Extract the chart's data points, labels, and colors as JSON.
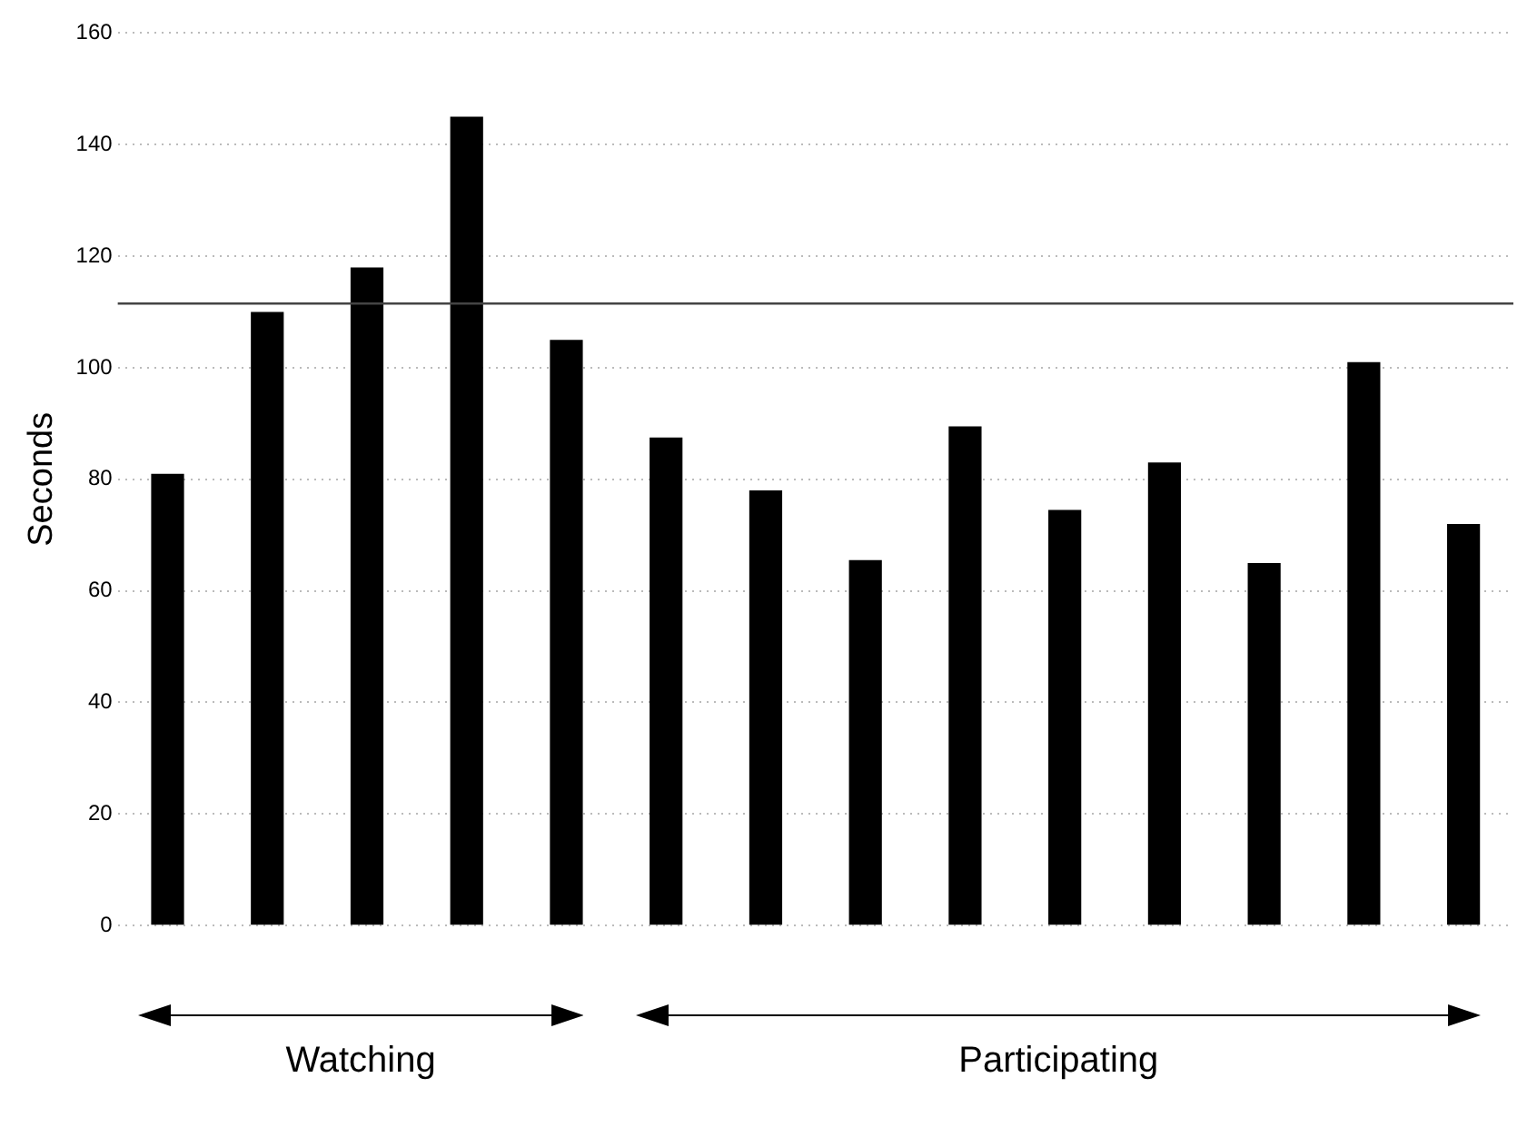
{
  "chart_data": {
    "type": "bar",
    "ylabel": "Seconds",
    "categories": [
      null,
      null,
      null,
      null,
      null,
      null,
      null,
      null,
      null,
      null,
      null,
      null,
      null,
      null
    ],
    "values": [
      81,
      110,
      118,
      145,
      105,
      87.5,
      78,
      65.5,
      89.5,
      74.5,
      83,
      65,
      101,
      72
    ],
    "color": "#000000",
    "ylim": [
      0,
      160
    ],
    "yticks": [
      0,
      20,
      40,
      60,
      80,
      100,
      120,
      140,
      160
    ],
    "grid": "y",
    "ref_lines": [
      {
        "axis": "y",
        "value": 111.5,
        "color": "#444444"
      }
    ],
    "annotations": [
      "Watching",
      "Participating"
    ]
  }
}
